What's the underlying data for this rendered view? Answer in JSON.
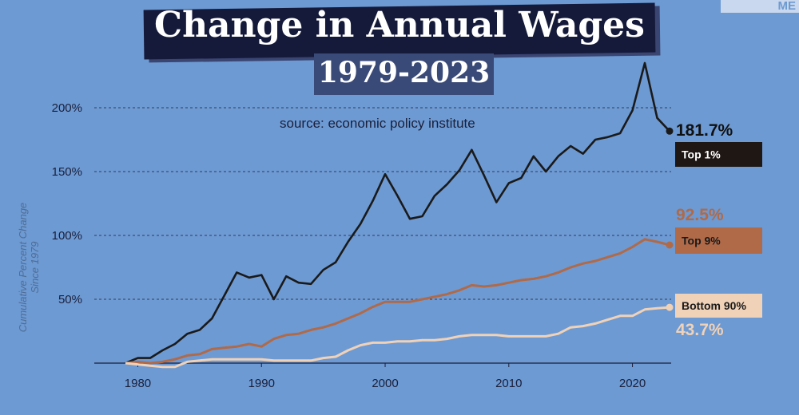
{
  "corner_badge": "ME",
  "chart_data": {
    "type": "line",
    "title": "Change in Annual Wages",
    "subtitle": "1979-2023",
    "source": "source: economic policy institute",
    "ylabel_line1": "Cumulative Percent Change",
    "ylabel_line2": "Since 1979",
    "xlim": [
      1979,
      2023
    ],
    "ylim": [
      0,
      200
    ],
    "xticks": [
      1980,
      1990,
      2000,
      2010,
      2020
    ],
    "yticks": [
      50,
      100,
      150,
      200
    ],
    "ytick_labels": [
      "50%",
      "100%",
      "150%",
      "200%"
    ],
    "grid": true,
    "colors": {
      "background": "#6d9ad3",
      "top1": "#1a1a1a",
      "top9": "#b06a48",
      "bottom90": "#f0d2b8"
    },
    "series": [
      {
        "name": "Top 1%",
        "end_label": "181.7%",
        "color": "#1a1a1a",
        "x": [
          1979,
          1980,
          1981,
          1982,
          1983,
          1984,
          1985,
          1986,
          1987,
          1988,
          1989,
          1990,
          1991,
          1992,
          1993,
          1994,
          1995,
          1996,
          1997,
          1998,
          1999,
          2000,
          2001,
          2002,
          2003,
          2004,
          2005,
          2006,
          2007,
          2008,
          2009,
          2010,
          2011,
          2012,
          2013,
          2014,
          2015,
          2016,
          2017,
          2018,
          2019,
          2020,
          2021,
          2022,
          2023
        ],
        "values": [
          0,
          4,
          4,
          10,
          15,
          23,
          26,
          35,
          53,
          71,
          67,
          69,
          50,
          68,
          63,
          62,
          73,
          79,
          95,
          109,
          127,
          148,
          131,
          113,
          115,
          131,
          140,
          151,
          167,
          147,
          126,
          141,
          145,
          162,
          150,
          162,
          170,
          164,
          175,
          177,
          180,
          198,
          235,
          192,
          181.7
        ]
      },
      {
        "name": "Top 9%",
        "end_label": "92.5%",
        "color": "#b06a48",
        "x": [
          1979,
          1980,
          1981,
          1982,
          1983,
          1984,
          1985,
          1986,
          1987,
          1988,
          1989,
          1990,
          1991,
          1992,
          1993,
          1994,
          1995,
          1996,
          1997,
          1998,
          1999,
          2000,
          2001,
          2002,
          2003,
          2004,
          2005,
          2006,
          2007,
          2008,
          2009,
          2010,
          2011,
          2012,
          2013,
          2014,
          2015,
          2016,
          2017,
          2018,
          2019,
          2020,
          2021,
          2022,
          2023
        ],
        "values": [
          0,
          1,
          0,
          1,
          3,
          6,
          7,
          11,
          12,
          13,
          15,
          13,
          19,
          22,
          23,
          26,
          28,
          31,
          35,
          39,
          44,
          48,
          48,
          48,
          50,
          52,
          54,
          57,
          61,
          60,
          61,
          63,
          65,
          66,
          68,
          71,
          75,
          78,
          80,
          83,
          86,
          91,
          97,
          95,
          92.5
        ]
      },
      {
        "name": "Bottom 90%",
        "end_label": "43.7%",
        "color": "#f0d2b8",
        "x": [
          1979,
          1980,
          1981,
          1982,
          1983,
          1984,
          1985,
          1986,
          1987,
          1988,
          1989,
          1990,
          1991,
          1992,
          1993,
          1994,
          1995,
          1996,
          1997,
          1998,
          1999,
          2000,
          2001,
          2002,
          2003,
          2004,
          2005,
          2006,
          2007,
          2008,
          2009,
          2010,
          2011,
          2012,
          2013,
          2014,
          2015,
          2016,
          2017,
          2018,
          2019,
          2020,
          2021,
          2022,
          2023
        ],
        "values": [
          0,
          -1,
          -2,
          -3,
          -3,
          1,
          2,
          3,
          3,
          3,
          3,
          3,
          2,
          2,
          2,
          2,
          4,
          5,
          10,
          14,
          16,
          16,
          17,
          17,
          18,
          18,
          19,
          21,
          22,
          22,
          22,
          21,
          21,
          21,
          21,
          23,
          28,
          29,
          31,
          34,
          37,
          37,
          42,
          43,
          43.7
        ]
      }
    ]
  }
}
